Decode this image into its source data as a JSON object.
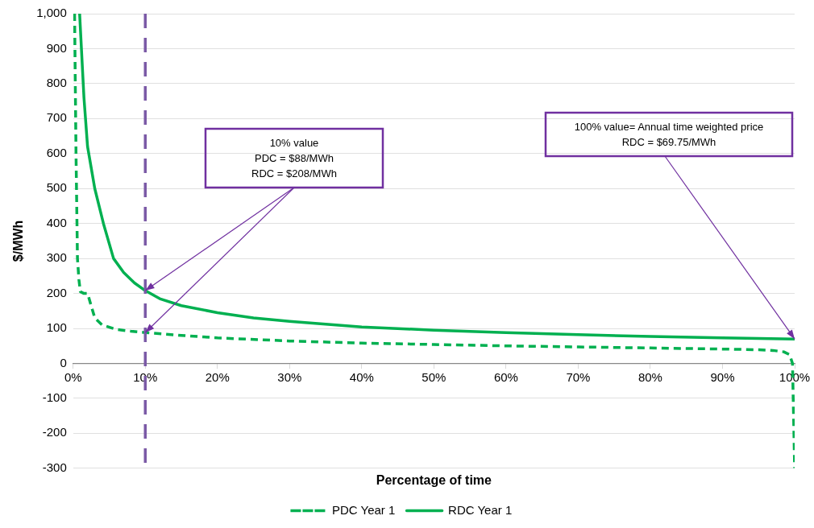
{
  "chart_data": {
    "type": "line",
    "xlabel": "Percentage of time",
    "ylabel": "$/MWh",
    "xlim": [
      0,
      100
    ],
    "xticks": [
      {
        "value": 0,
        "label": "0%"
      },
      {
        "value": 10,
        "label": "10%"
      },
      {
        "value": 20,
        "label": "20%"
      },
      {
        "value": 30,
        "label": "30%"
      },
      {
        "value": 40,
        "label": "40%"
      },
      {
        "value": 50,
        "label": "50%"
      },
      {
        "value": 60,
        "label": "60%"
      },
      {
        "value": 70,
        "label": "70%"
      },
      {
        "value": 80,
        "label": "80%"
      },
      {
        "value": 90,
        "label": "90%"
      },
      {
        "value": 100,
        "label": "100%"
      }
    ],
    "ylim": [
      -300,
      1000
    ],
    "yticks": [
      -300,
      -200,
      -100,
      0,
      100,
      200,
      300,
      400,
      500,
      600,
      700,
      800,
      900,
      {
        "value": 1000,
        "label": "1,000"
      }
    ],
    "grid": "y",
    "legend": "bottom",
    "marker": "none",
    "series": [
      {
        "name": "PDC Year 1",
        "color": "#00b050",
        "line_style": "dashed",
        "x": [
          0.2,
          0.4,
          0.6,
          0.8,
          1,
          1.5,
          2,
          2.5,
          3,
          4,
          6,
          8,
          10,
          15,
          20,
          30,
          40,
          50,
          60,
          70,
          80,
          90,
          95,
          97,
          98.5,
          99.3,
          99.7,
          100
        ],
        "values": [
          1000,
          600,
          300,
          240,
          205,
          200,
          200,
          165,
          130,
          110,
          97,
          92,
          88,
          80,
          73,
          64,
          58,
          54,
          50,
          47,
          44,
          41,
          39,
          37,
          33,
          25,
          0,
          -300
        ]
      },
      {
        "name": "RDC Year 1",
        "color": "#00b050",
        "line_style": "solid",
        "x": [
          0.9,
          1.5,
          2,
          3,
          4.2,
          5.6,
          7,
          8.5,
          10,
          12,
          15,
          20,
          25,
          30,
          40,
          50,
          60,
          70,
          80,
          90,
          100
        ],
        "values": [
          1000,
          760,
          620,
          500,
          400,
          300,
          260,
          230,
          208,
          185,
          165,
          145,
          130,
          120,
          104,
          95,
          88,
          82,
          77,
          73,
          69.75
        ]
      }
    ],
    "ref_lines": [
      {
        "axis": "x",
        "value": 10,
        "color": "#7b5aa6",
        "line_style": "dashed"
      }
    ],
    "annotations": [
      {
        "text": "10% value\nPDC = $88/MWh\nRDC = $208/MWh",
        "x": 10,
        "y": 208
      },
      {
        "text": "100% value= Annual time weighted price\nRDC = $69.75/MWh",
        "x": 100,
        "y": 69.75
      }
    ]
  }
}
